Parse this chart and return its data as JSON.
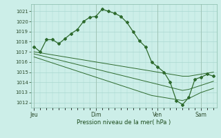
{
  "bg_color": "#cceee8",
  "grid_color": "#aad8d0",
  "line_color": "#2d6a2d",
  "ylabel": "Pression niveau de la mer( hPa )",
  "ylim": [
    1011.5,
    1021.7
  ],
  "yticks": [
    1012,
    1013,
    1014,
    1015,
    1016,
    1017,
    1018,
    1019,
    1020,
    1021
  ],
  "xtick_labels": [
    "Jeu",
    "Dim",
    "Ven",
    "Sam"
  ],
  "xtick_positions": [
    0,
    10,
    20,
    27
  ],
  "total_points": 30,
  "series1": [
    1017.5,
    1017.0,
    1018.2,
    1018.2,
    1017.8,
    1018.3,
    1018.8,
    1019.2,
    1020.0,
    1020.4,
    1020.5,
    1021.2,
    1021.0,
    1020.8,
    1020.5,
    1019.9,
    1019.0,
    1018.1,
    1017.5,
    1016.0,
    1015.5,
    1015.0,
    1014.0,
    1012.2,
    1011.8,
    1012.5,
    1014.3,
    1014.5,
    1014.8,
    1014.6
  ],
  "series2": [
    1017.0,
    1016.9,
    1016.8,
    1016.7,
    1016.6,
    1016.5,
    1016.4,
    1016.3,
    1016.2,
    1016.1,
    1016.0,
    1015.9,
    1015.8,
    1015.7,
    1015.6,
    1015.5,
    1015.4,
    1015.3,
    1015.2,
    1015.1,
    1015.0,
    1014.9,
    1014.8,
    1014.7,
    1014.6,
    1014.6,
    1014.7,
    1014.8,
    1014.9,
    1015.0
  ],
  "series3": [
    1016.8,
    1016.65,
    1016.5,
    1016.35,
    1016.2,
    1016.05,
    1015.9,
    1015.75,
    1015.6,
    1015.45,
    1015.3,
    1015.15,
    1015.0,
    1014.85,
    1014.7,
    1014.55,
    1014.4,
    1014.25,
    1014.1,
    1013.95,
    1013.8,
    1013.65,
    1013.5,
    1013.35,
    1013.2,
    1013.3,
    1013.5,
    1013.7,
    1013.9,
    1014.1
  ],
  "series4": [
    1016.5,
    1016.3,
    1016.1,
    1015.9,
    1015.7,
    1015.5,
    1015.3,
    1015.1,
    1014.9,
    1014.7,
    1014.5,
    1014.3,
    1014.1,
    1013.9,
    1013.7,
    1013.5,
    1013.3,
    1013.1,
    1012.9,
    1012.7,
    1012.6,
    1012.5,
    1012.4,
    1012.3,
    1012.2,
    1012.4,
    1012.7,
    1013.0,
    1013.2,
    1013.4
  ]
}
